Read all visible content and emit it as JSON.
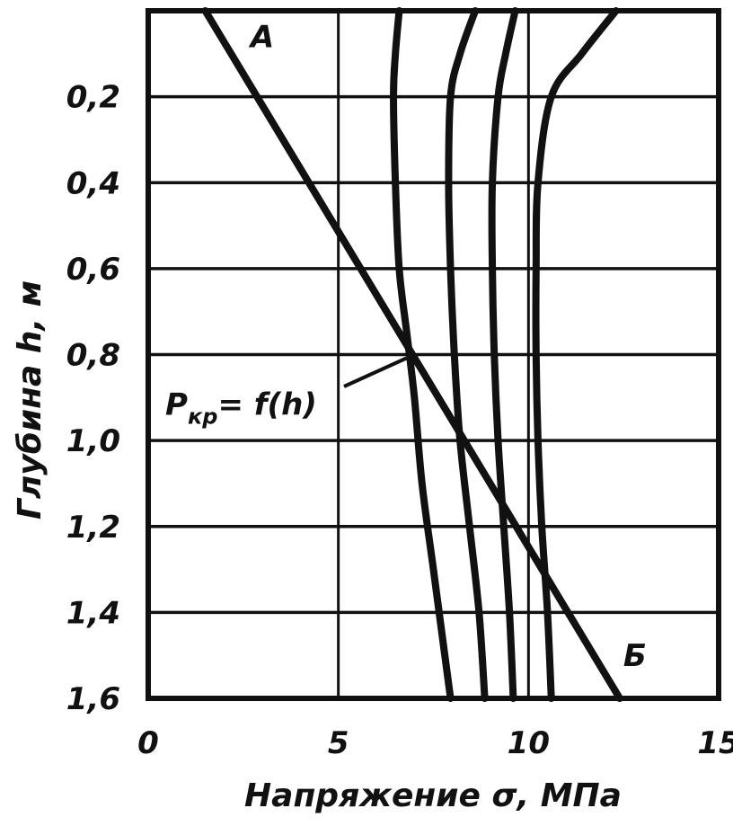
{
  "chart_data": {
    "type": "line",
    "title": "",
    "xlabel": "Напряжение σ, МПа",
    "ylabel": "Глубина h, м",
    "xlim": [
      0,
      15
    ],
    "ylim": [
      0,
      1.6
    ],
    "y_inverted": true,
    "grid": {
      "horizontal": true,
      "vertical_sparse": true
    },
    "xticks": [
      {
        "value": 0,
        "label": "0"
      },
      {
        "value": 5,
        "label": "5"
      },
      {
        "value": 10,
        "label": "10"
      },
      {
        "value": 15,
        "label": "15"
      }
    ],
    "yticks": [
      {
        "value": 0.2,
        "label": "0,2"
      },
      {
        "value": 0.4,
        "label": "0,4"
      },
      {
        "value": 0.6,
        "label": "0,6"
      },
      {
        "value": 0.8,
        "label": "0,8"
      },
      {
        "value": 1.0,
        "label": "1,0"
      },
      {
        "value": 1.2,
        "label": "1,2"
      },
      {
        "value": 1.4,
        "label": "1,4"
      },
      {
        "value": 1.6,
        "label": "1,6"
      }
    ],
    "series": [
      {
        "name": "",
        "points": [
          [
            6.6,
            0
          ],
          [
            6.5,
            0.1
          ],
          [
            6.45,
            0.2
          ],
          [
            6.5,
            0.4
          ],
          [
            6.6,
            0.6
          ],
          [
            6.8,
            0.75
          ],
          [
            7.0,
            0.9
          ],
          [
            7.2,
            1.1
          ],
          [
            7.5,
            1.3
          ],
          [
            7.8,
            1.5
          ],
          [
            7.95,
            1.6
          ]
        ]
      },
      {
        "name": "",
        "points": [
          [
            8.6,
            0
          ],
          [
            8.2,
            0.1
          ],
          [
            7.95,
            0.2
          ],
          [
            7.9,
            0.4
          ],
          [
            7.95,
            0.6
          ],
          [
            8.05,
            0.8
          ],
          [
            8.2,
            1.0
          ],
          [
            8.45,
            1.2
          ],
          [
            8.7,
            1.4
          ],
          [
            8.85,
            1.6
          ]
        ]
      },
      {
        "name": "",
        "points": [
          [
            9.65,
            0
          ],
          [
            9.4,
            0.1
          ],
          [
            9.2,
            0.2
          ],
          [
            9.05,
            0.4
          ],
          [
            9.05,
            0.6
          ],
          [
            9.1,
            0.8
          ],
          [
            9.2,
            1.0
          ],
          [
            9.35,
            1.2
          ],
          [
            9.5,
            1.4
          ],
          [
            9.6,
            1.6
          ]
        ]
      },
      {
        "name": "",
        "points": [
          [
            12.3,
            0
          ],
          [
            11.4,
            0.1
          ],
          [
            10.6,
            0.2
          ],
          [
            10.25,
            0.4
          ],
          [
            10.2,
            0.6
          ],
          [
            10.2,
            0.8
          ],
          [
            10.25,
            1.0
          ],
          [
            10.35,
            1.2
          ],
          [
            10.5,
            1.4
          ],
          [
            10.6,
            1.6
          ]
        ]
      },
      {
        "name": "Pкр = f(h)",
        "points": [
          [
            1.5,
            0
          ],
          [
            12.4,
            1.6
          ]
        ]
      }
    ],
    "annotations": [
      {
        "id": "a",
        "text": "А",
        "x": 3.0,
        "y": 0.06
      },
      {
        "id": "b",
        "text": "Б",
        "x": 12.8,
        "y": 1.5
      },
      {
        "id": "pkr",
        "text_main": "P",
        "text_sub": "кр",
        "text_rest": "= f(h)",
        "x": 0.45,
        "y": 0.94,
        "arrow_to": [
          6.6,
          0.8
        ]
      }
    ]
  }
}
